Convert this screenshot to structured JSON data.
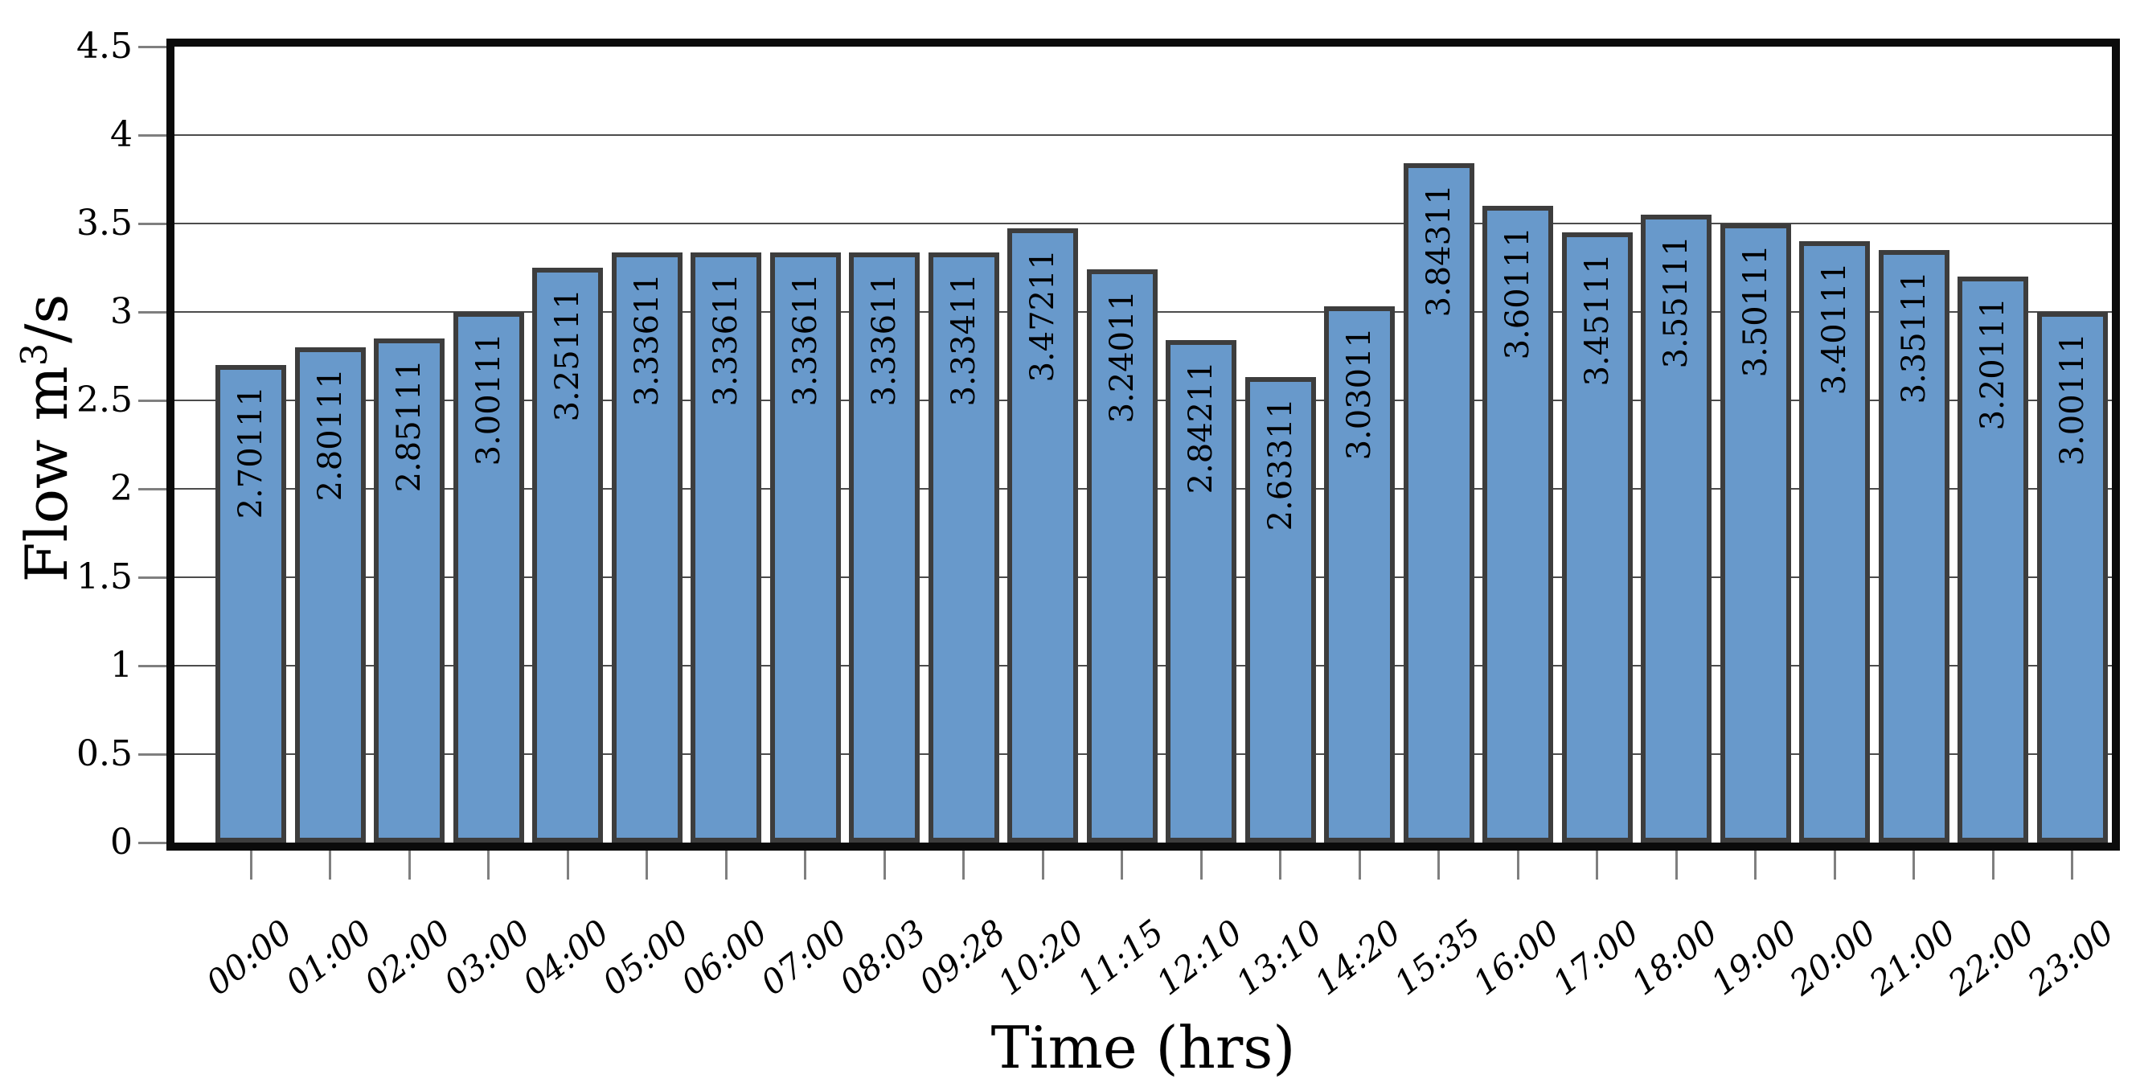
{
  "chart_data": {
    "type": "bar",
    "title": "",
    "xlabel": "Time (hrs)",
    "ylabel": "Flow m3/s",
    "ylabel_parts": {
      "prefix": "Flow m",
      "sup": "3",
      "suffix": "/s"
    },
    "ylim": [
      0,
      4.5
    ],
    "ytick_step": 0.5,
    "ytick_labels": [
      "0",
      "0.5",
      "1",
      "1.5",
      "2",
      "2.5",
      "3",
      "3.5",
      "4",
      "4.5"
    ],
    "grid": true,
    "legend": false,
    "categories": [
      "00:00",
      "01:00",
      "02:00",
      "03:00",
      "04:00",
      "05:00",
      "06:00",
      "07:00",
      "08:03",
      "09:28",
      "10:20",
      "11:15",
      "12:10",
      "13:10",
      "14:20",
      "15:35",
      "16:00",
      "17:00",
      "18:00",
      "19:00",
      "20:00",
      "21:00",
      "22:00",
      "23:00"
    ],
    "values": [
      2.70111,
      2.80111,
      2.85111,
      3.00111,
      3.25111,
      3.33611,
      3.33611,
      3.33611,
      3.33611,
      3.33411,
      3.47211,
      3.24011,
      2.84211,
      2.63311,
      3.03011,
      3.84311,
      3.60111,
      3.45111,
      3.55111,
      3.50111,
      3.40111,
      3.35111,
      3.20111,
      3.00111
    ],
    "bar_value_labels": [
      "2.70111",
      "2.80111",
      "2.85111",
      "3.00111",
      "3.25111",
      "3.33611",
      "3.33611",
      "3.33611",
      "3.33611",
      "3.33411",
      "3.47211",
      "3.24011",
      "2.84211",
      "2.63311",
      "3.03011",
      "3.84311",
      "3.60111",
      "3.45111",
      "3.55111",
      "3.50111",
      "3.40111",
      "3.35111",
      "3.20111",
      "3.00111"
    ],
    "colors": {
      "bar_fill": "#6899cb",
      "bar_border": "#3d3d3d",
      "grid": "#4c4c4c",
      "tick": "#7f7f7f",
      "frame": "#0b0b0b",
      "text": "#000000",
      "background": "#ffffff"
    }
  }
}
